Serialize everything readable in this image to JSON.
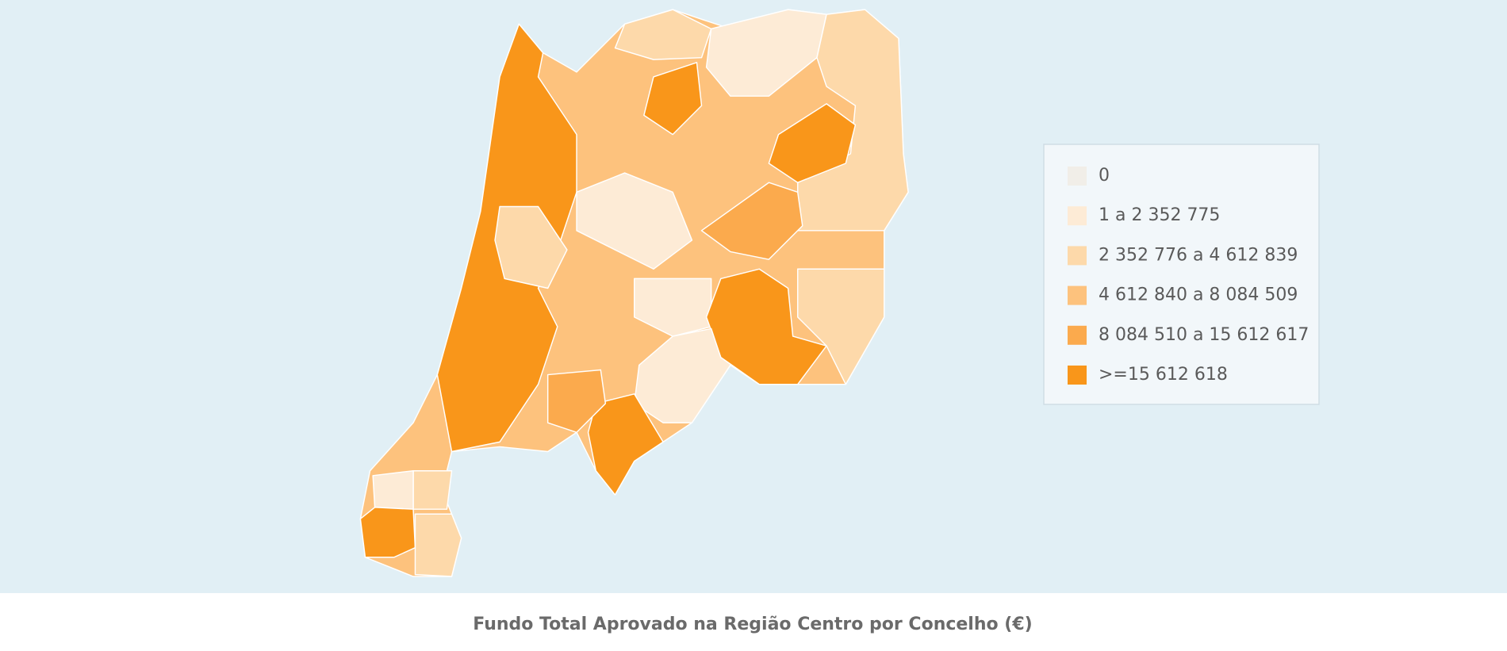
{
  "title": "Fundo Total Aprovado na Região Centro por Concelho (€)",
  "legend": {
    "items": [
      {
        "label": "0",
        "color": "#f1eee8"
      },
      {
        "label": "1 a 2 352 775",
        "color": "#fdebd6"
      },
      {
        "label": "2 352 776 a 4 612 839",
        "color": "#fdd9aa"
      },
      {
        "label": "4 612 840 a 8 084 509",
        "color": "#fdc27d"
      },
      {
        "label": "8 084 510 a 15 612 617",
        "color": "#fbaa4d"
      },
      {
        "label": ">=15 612 618",
        "color": "#f9961a"
      }
    ]
  }
}
